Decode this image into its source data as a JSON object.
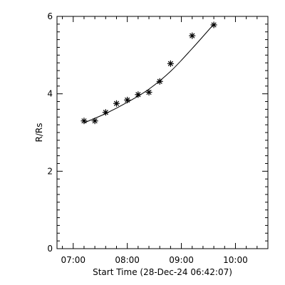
{
  "chart_data": {
    "type": "scatter",
    "xlabel": "Start Time (28-Dec-24 06:42:07)",
    "ylabel": "R/Rs",
    "x_axis": {
      "unit": "hours_of_day",
      "range": [
        6.7,
        10.6
      ],
      "major_ticks": [
        7,
        8,
        9,
        10
      ],
      "major_tick_labels": [
        "07:00",
        "08:00",
        "09:00",
        "10:00"
      ],
      "minor_tick_step": 0.2
    },
    "y_axis": {
      "range": [
        0,
        6
      ],
      "major_ticks": [
        0,
        2,
        4,
        6
      ],
      "major_tick_labels": [
        "0",
        "2",
        "4",
        "6"
      ],
      "minor_tick_step": 0.2
    },
    "series": [
      {
        "marker": "asterisk",
        "x": [
          7.2,
          7.4,
          7.6,
          7.8,
          8.0,
          8.2,
          8.4,
          8.6,
          8.8,
          9.2,
          9.6
        ],
        "y": [
          3.3,
          3.3,
          3.52,
          3.75,
          3.84,
          3.98,
          4.04,
          4.32,
          4.78,
          5.5,
          5.78
        ]
      }
    ],
    "fit": {
      "style": "solid-line",
      "x": [
        7.2,
        7.6,
        8.0,
        8.4,
        8.8,
        9.2,
        9.6
      ],
      "y": [
        3.25,
        3.49,
        3.78,
        4.12,
        4.58,
        5.17,
        5.8
      ]
    },
    "grid": false
  }
}
